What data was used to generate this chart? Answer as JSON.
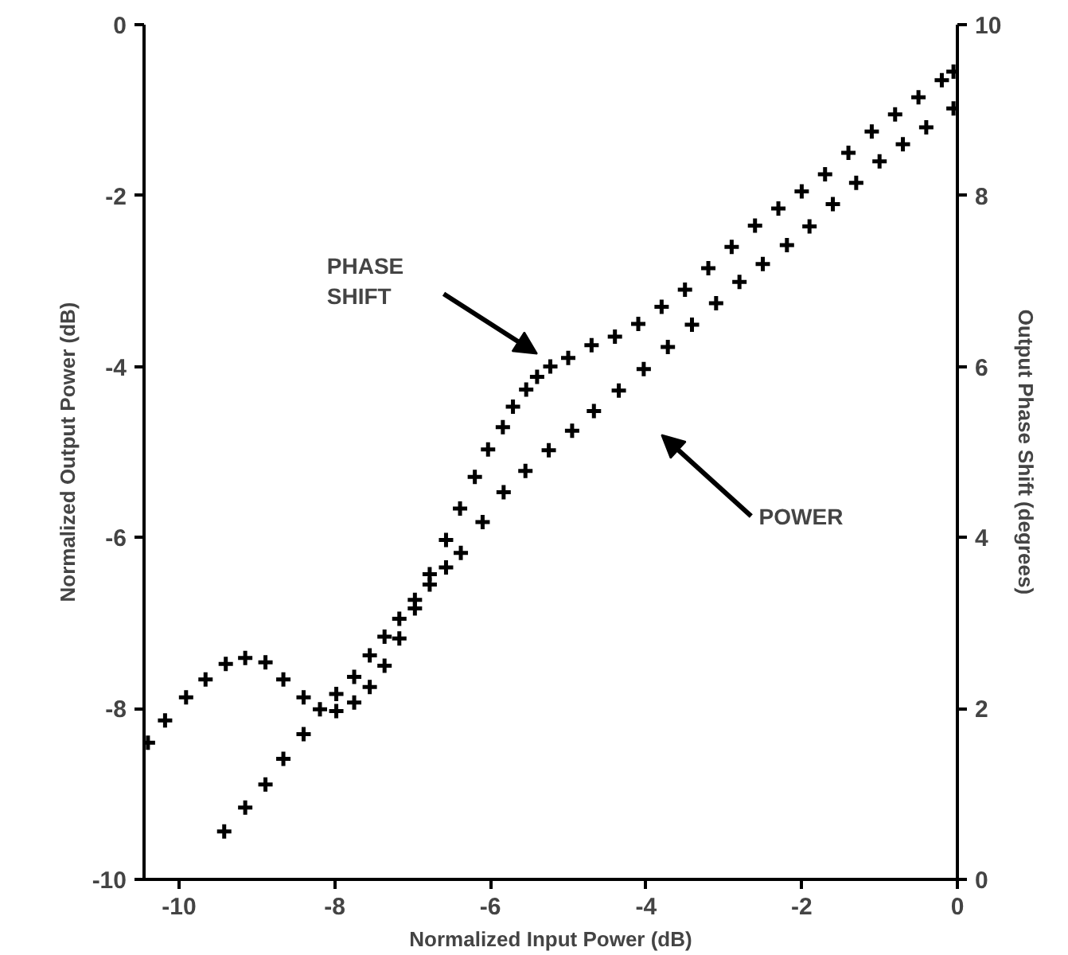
{
  "chart_data": {
    "type": "scatter",
    "xlabel": "Normalized Input Power (dB)",
    "ylabel": "Normalized Output Power (dB)",
    "y2label": "Output Phase Shift (degrees)",
    "xlim": [
      -10.45,
      0
    ],
    "xticks": [
      -10,
      -8,
      -6,
      -4,
      -2,
      0
    ],
    "ylim": [
      -10,
      0
    ],
    "yticks": [
      -10,
      -8,
      -6,
      -4,
      -2,
      0
    ],
    "y2lim": [
      0,
      10
    ],
    "y2ticks": [
      0,
      2,
      4,
      6,
      8,
      10
    ],
    "grid": false,
    "marker": "cross",
    "series": [
      {
        "color": "#000000",
        "axis": "y2",
        "x": [
          -10.4,
          -10.18,
          -9.91,
          -9.66,
          -9.4,
          -9.15,
          -8.89,
          -8.66,
          -8.4,
          -8.19,
          -7.98,
          -7.75,
          -7.55,
          -7.36,
          -7.17,
          -6.97,
          -6.78,
          -6.57,
          -6.39,
          -6.2,
          -6.03,
          -5.84,
          -5.71,
          -5.54,
          -5.4,
          -5.23,
          -5.0,
          -4.7,
          -4.4,
          -4.1,
          -3.8,
          -3.5,
          -3.2,
          -2.9,
          -2.6,
          -2.3,
          -2.0,
          -1.7,
          -1.4,
          -1.1,
          -0.8,
          -0.5,
          -0.2,
          -0.05
        ],
        "values": [
          1.6,
          1.86,
          2.13,
          2.34,
          2.52,
          2.59,
          2.54,
          2.34,
          2.13,
          1.99,
          2.17,
          2.37,
          2.62,
          2.84,
          3.05,
          3.27,
          3.57,
          3.97,
          4.34,
          4.71,
          5.03,
          5.29,
          5.53,
          5.73,
          5.88,
          6.0,
          6.1,
          6.25,
          6.35,
          6.5,
          6.7,
          6.9,
          7.15,
          7.4,
          7.65,
          7.85,
          8.05,
          8.25,
          8.5,
          8.75,
          8.95,
          9.15,
          9.35,
          9.45
        ]
      },
      {
        "color": "#000000",
        "x": [
          -9.42,
          -9.15,
          -8.89,
          -8.66,
          -8.4,
          -8.19,
          -7.98,
          -7.75,
          -7.55,
          -7.36,
          -7.17,
          -6.97,
          -6.78,
          -6.57,
          -6.38,
          -6.1,
          -5.83,
          -5.55,
          -5.25,
          -4.95,
          -4.67,
          -4.35,
          -4.03,
          -3.72,
          -3.41,
          -3.1,
          -2.8,
          -2.5,
          -2.19,
          -1.9,
          -1.6,
          -1.3,
          -1.0,
          -0.7,
          -0.4,
          -0.05
        ],
        "values": [
          -9.44,
          -9.16,
          -8.89,
          -8.59,
          -8.3,
          null,
          -8.03,
          -7.93,
          -7.75,
          -7.5,
          -7.18,
          -6.83,
          -6.55,
          -6.35,
          -6.18,
          -5.82,
          -5.47,
          -5.22,
          -4.98,
          -4.75,
          -4.52,
          -4.28,
          -4.03,
          -3.77,
          -3.51,
          -3.26,
          -3.01,
          -2.8,
          -2.58,
          -2.36,
          -2.1,
          -1.85,
          -1.6,
          -1.4,
          -1.2,
          -0.98
        ]
      }
    ],
    "annotations": [
      "PHASE\nSHIFT",
      "POWER"
    ]
  }
}
